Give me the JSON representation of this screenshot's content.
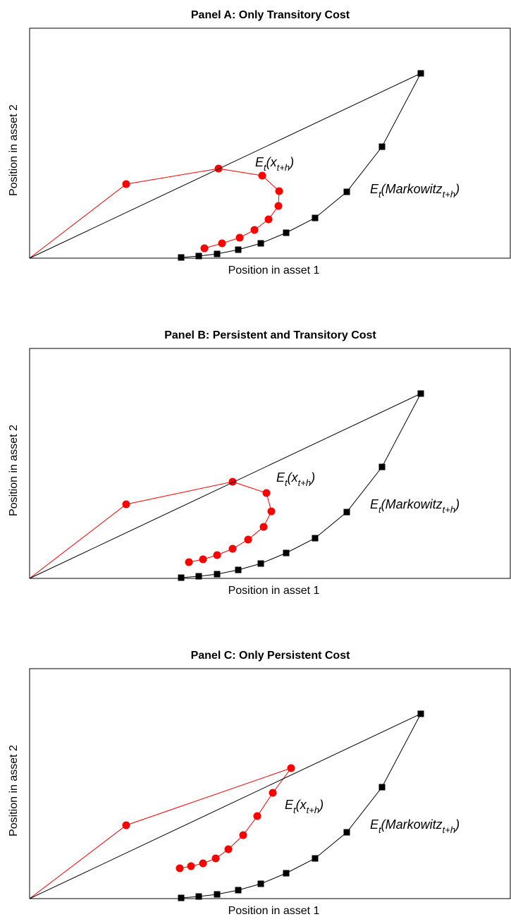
{
  "chart_data": [
    {
      "type": "line",
      "title": "Panel A: Only Transitory Cost",
      "xlabel": "Position in asset 1",
      "ylabel": "Position in asset 2",
      "xlim": [
        0,
        683
      ],
      "ylim": [
        0,
        326
      ],
      "series": [
        {
          "label_parts": [
            "E",
            "t",
            "(x",
            "t+h",
            ")"
          ],
          "color": "#ff0000",
          "marker": "circle",
          "origin": [
            0,
            0
          ],
          "points": [
            [
              137,
              105
            ],
            [
              268,
              127
            ],
            [
              330,
              117
            ],
            [
              354,
              95
            ],
            [
              353,
              74
            ],
            [
              339,
              55
            ],
            [
              319,
              40
            ],
            [
              298,
              29
            ],
            [
              273,
              21
            ],
            [
              248,
              14
            ]
          ]
        },
        {
          "label_parts": [
            "E",
            "t",
            "(Markowitz",
            "t+h",
            ")"
          ],
          "color": "#000000",
          "marker": "square",
          "origin": [
            0,
            0
          ],
          "points": [
            [
              555,
              262
            ],
            [
              500,
              158
            ],
            [
              450,
              94
            ],
            [
              405,
              57
            ],
            [
              364,
              36
            ],
            [
              328,
              21
            ],
            [
              296,
              12
            ],
            [
              266,
              6
            ],
            [
              240,
              3
            ],
            [
              215,
              1
            ]
          ]
        }
      ]
    },
    {
      "type": "line",
      "title": "Panel B: Persistent and Transitory Cost",
      "xlabel": "Position in asset 1",
      "ylabel": "Position in asset 2",
      "xlim": [
        0,
        683
      ],
      "ylim": [
        0,
        326
      ],
      "series": [
        {
          "label_parts": [
            "E",
            "t",
            "(x",
            "t+h",
            ")"
          ],
          "color": "#ff0000",
          "marker": "circle",
          "origin": [
            0,
            0
          ],
          "points": [
            [
              137,
              105
            ],
            [
              288,
              137
            ],
            [
              336,
              121
            ],
            [
              343,
              95
            ],
            [
              332,
              73
            ],
            [
              310,
              55
            ],
            [
              288,
              42
            ],
            [
              266,
              33
            ],
            [
              246,
              27
            ],
            [
              226,
              23
            ]
          ]
        },
        {
          "label_parts": [
            "E",
            "t",
            "(Markowitz",
            "t+h",
            ")"
          ],
          "color": "#000000",
          "marker": "square",
          "origin": [
            0,
            0
          ],
          "points": [
            [
              555,
              262
            ],
            [
              500,
              158
            ],
            [
              450,
              94
            ],
            [
              405,
              57
            ],
            [
              364,
              36
            ],
            [
              328,
              21
            ],
            [
              296,
              12
            ],
            [
              266,
              6
            ],
            [
              240,
              3
            ],
            [
              215,
              1
            ]
          ]
        }
      ]
    },
    {
      "type": "line",
      "title": "Panel C: Only Persistent Cost",
      "xlabel": "Position in asset 1",
      "ylabel": "Position in asset 2",
      "xlim": [
        0,
        683
      ],
      "ylim": [
        0,
        326
      ],
      "series": [
        {
          "label_parts": [
            "E",
            "t",
            "(x",
            "t+h",
            ")"
          ],
          "color": "#ff0000",
          "marker": "circle",
          "origin": [
            0,
            0
          ],
          "points": [
            [
              137,
              104
            ],
            [
              371,
              185
            ],
            [
              345,
              150
            ],
            [
              323,
              117
            ],
            [
              303,
              90
            ],
            [
              282,
              70
            ],
            [
              264,
              57
            ],
            [
              246,
              50
            ],
            [
              229,
              46
            ],
            [
              213,
              43
            ]
          ]
        },
        {
          "label_parts": [
            "E",
            "t",
            "(Markowitz",
            "t+h",
            ")"
          ],
          "color": "#000000",
          "marker": "square",
          "origin": [
            0,
            0
          ],
          "points": [
            [
              555,
              262
            ],
            [
              500,
              158
            ],
            [
              450,
              94
            ],
            [
              405,
              57
            ],
            [
              364,
              36
            ],
            [
              328,
              21
            ],
            [
              296,
              12
            ],
            [
              266,
              6
            ],
            [
              240,
              3
            ],
            [
              215,
              1
            ]
          ]
        }
      ]
    }
  ]
}
